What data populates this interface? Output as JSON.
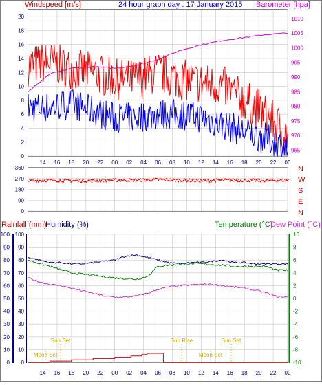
{
  "header": {
    "left_label": "Windspeed [m/s]",
    "title": "24 hour graph day : 17 January 2015",
    "right_label": "Barometer [hpa]"
  },
  "colors": {
    "wind_gust": "#ff0000",
    "wind_avg": "#0000ff",
    "barometer": "#cc00cc",
    "wind_dir": "#ff0000",
    "rain": "#cc0000",
    "humidity": "#000080",
    "temperature": "#008000",
    "dewpoint": "#cc33cc",
    "sun_moon": "#ccaa00",
    "grid": "#c8c8c8",
    "frame": "#808080"
  },
  "x_ticks": [
    "14",
    "16",
    "18",
    "20",
    "22",
    "00",
    "02",
    "04",
    "06",
    "08",
    "10",
    "12",
    "14",
    "16",
    "18",
    "20",
    "22",
    "00"
  ],
  "wind_panel": {
    "left_ticks": [
      "0",
      "2",
      "4",
      "6",
      "8",
      "10",
      "12",
      "14",
      "16",
      "18",
      "20"
    ],
    "right_ticks": [
      "965",
      "970",
      "975",
      "980",
      "985",
      "990",
      "995",
      "1000",
      "1005",
      "1010"
    ]
  },
  "dir_panel": {
    "left_ticks": [
      "0",
      "90",
      "180",
      "270",
      "360"
    ],
    "right_labels": [
      "N",
      "W",
      "S",
      "E",
      "N"
    ]
  },
  "lower_panel": {
    "rain_label": "Rainfall (mm)",
    "humidity_label": "Humidity (%)",
    "temp_label": "Temperature (°C)",
    "dew_label": "Dew Point (°C)",
    "rain_ticks": [
      "0",
      "10",
      "20",
      "30",
      "40",
      "50",
      "60",
      "70",
      "80",
      "90",
      "100"
    ],
    "humidity_ticks": [
      "0",
      "10",
      "20",
      "30",
      "40",
      "50",
      "60",
      "70",
      "80",
      "90",
      "100"
    ],
    "temp_ticks": [
      "-10",
      "-8",
      "-6",
      "-4",
      "-2",
      "0",
      "2",
      "4",
      "6",
      "8",
      "10"
    ],
    "sun_moon": [
      {
        "label": "Sun Set",
        "row": "upper"
      },
      {
        "label": "Sun Rise",
        "row": "upper"
      },
      {
        "label": "Sun Set",
        "row": "upper"
      },
      {
        "label": "Moon Set",
        "row": "lower"
      },
      {
        "label": "Moon Set",
        "row": "lower"
      }
    ]
  },
  "chart_data": [
    {
      "type": "line",
      "title": "24 hour graph day : 17 January 2015",
      "ylabel": "Windspeed [m/s]",
      "y2label": "Barometer [hpa]",
      "ylim": [
        0,
        21
      ],
      "y2lim": [
        963,
        1013
      ],
      "x_hours": [
        0,
        2,
        4,
        6,
        8,
        10,
        12,
        14,
        16,
        18,
        20,
        22,
        24
      ],
      "series": [
        {
          "name": "gust",
          "axis": "left",
          "values": [
            13,
            13.5,
            12.5,
            12,
            11,
            11,
            12,
            11,
            10.5,
            10,
            8,
            6,
            3
          ]
        },
        {
          "name": "avg",
          "axis": "left",
          "values": [
            7,
            7,
            7.5,
            6.5,
            5.5,
            5.5,
            6,
            6,
            5.5,
            4.5,
            3.5,
            2.5,
            1
          ]
        },
        {
          "name": "barometer",
          "axis": "right",
          "values": [
            985,
            991,
            993,
            993.5,
            993,
            994,
            996,
            999,
            1001,
            1002.5,
            1003.5,
            1004.5,
            1005
          ]
        }
      ]
    },
    {
      "type": "scatter",
      "ylim": [
        0,
        360
      ],
      "series": [
        {
          "name": "direction",
          "values": [
            250,
            255,
            250,
            250,
            255,
            255,
            260,
            255,
            250,
            255,
            255,
            250,
            255
          ]
        }
      ]
    },
    {
      "type": "line",
      "ylim": [
        0,
        100
      ],
      "y2lim": [
        -10,
        10
      ],
      "x_hours": [
        0,
        1,
        2,
        3,
        4,
        5,
        6,
        7,
        8,
        9,
        10,
        11,
        12,
        13,
        14,
        15,
        16,
        17,
        18,
        19,
        20,
        21,
        22,
        23,
        24
      ],
      "series": [
        {
          "name": "humidity",
          "axis": "left",
          "values": [
            82,
            80,
            78,
            78,
            77,
            77,
            78,
            79,
            80,
            83,
            84,
            82,
            80,
            78,
            77,
            78,
            78,
            79,
            80,
            78,
            78,
            77,
            77,
            77,
            77
          ]
        },
        {
          "name": "temperature",
          "axis": "right",
          "values": [
            6,
            5.5,
            5,
            4.5,
            4,
            3.8,
            3.6,
            3.4,
            3.2,
            3.1,
            3,
            3.4,
            5,
            5.2,
            5.3,
            5.4,
            5.4,
            5.3,
            5.2,
            5,
            5,
            5,
            5,
            4.4,
            4.4
          ]
        },
        {
          "name": "dewpoint",
          "axis": "right",
          "values": [
            3.2,
            2.6,
            2.2,
            2,
            1.6,
            1.2,
            0.8,
            0.4,
            0.2,
            0.2,
            0.4,
            0.8,
            1.4,
            1.8,
            2,
            2.1,
            2.2,
            2.2,
            2,
            1.8,
            1.6,
            1.3,
            0.9,
            0.3,
            0.2
          ]
        },
        {
          "name": "rainfall",
          "axis": "left",
          "values": [
            0,
            0,
            0.5,
            1,
            1.5,
            2,
            2.5,
            3,
            3.5,
            4,
            5,
            6.5,
            7,
            0,
            0,
            0,
            0,
            0,
            0,
            0,
            0,
            0,
            0,
            0,
            0
          ]
        }
      ]
    }
  ]
}
